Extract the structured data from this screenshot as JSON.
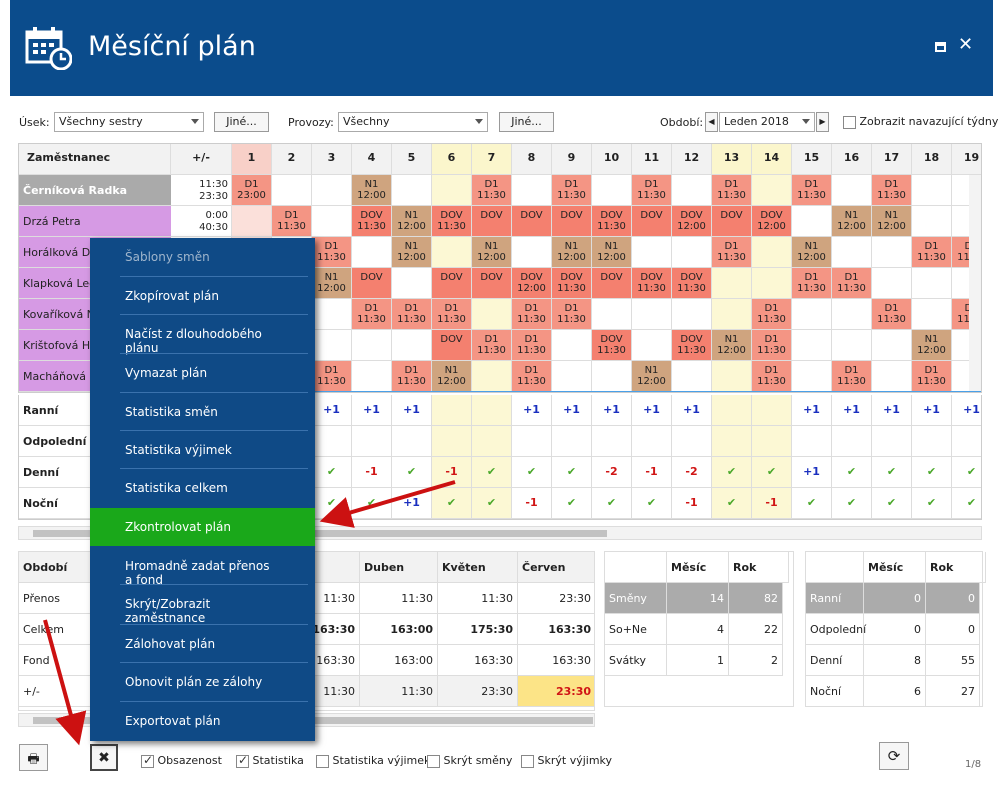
{
  "header": {
    "title": "Měsíční plán"
  },
  "toolbar": {
    "usek_label": "Úsek:",
    "usek_value": "Všechny sestry",
    "jine1": "Jiné...",
    "provozy_label": "Provozy:",
    "provozy_value": "Všechny",
    "jine2": "Jiné...",
    "obdobi_label": "Období:",
    "obdobi_value": "Leden 2018",
    "navazujici": "Zobrazit navazující týdny"
  },
  "grid": {
    "col_employee": "Zaměstnanec",
    "col_pm": "+/-",
    "days": [
      "1",
      "2",
      "3",
      "4",
      "5",
      "6",
      "7",
      "8",
      "9",
      "10",
      "11",
      "12",
      "13",
      "14",
      "15",
      "16",
      "17",
      "18",
      "19"
    ],
    "rows": [
      {
        "name": "Černíková Radka",
        "pm1": "11:30",
        "pm2": "23:30",
        "cells": [
          [
            "D1",
            "23:00"
          ],
          [
            "",
            ""
          ],
          [
            "",
            ""
          ],
          [
            "N1",
            "12:00"
          ],
          [
            "",
            ""
          ],
          [
            "",
            ""
          ],
          [
            "D1",
            "11:30"
          ],
          [
            "",
            ""
          ],
          [
            "D1",
            "11:30"
          ],
          [
            "",
            ""
          ],
          [
            "D1",
            "11:30"
          ],
          [
            "",
            ""
          ],
          [
            "D1",
            "11:30"
          ],
          [
            "",
            ""
          ],
          [
            "D1",
            "11:30"
          ],
          [
            "",
            ""
          ],
          [
            "D1",
            "11:30"
          ],
          [
            "",
            ""
          ],
          [
            "",
            ""
          ]
        ]
      },
      {
        "name": "Drzá Petra",
        "pm1": "0:00",
        "pm2": "40:30",
        "cells": [
          [
            "",
            ""
          ],
          [
            "D1",
            "11:30"
          ],
          [
            "",
            ""
          ],
          [
            "DOV",
            "11:30"
          ],
          [
            "N1",
            "12:00"
          ],
          [
            "DOV",
            "11:30"
          ],
          [
            "DOV",
            ""
          ],
          [
            "DOV",
            ""
          ],
          [
            "DOV",
            ""
          ],
          [
            "DOV",
            "11:30"
          ],
          [
            "DOV",
            ""
          ],
          [
            "DOV",
            "12:00"
          ],
          [
            "DOV",
            ""
          ],
          [
            "DOV",
            "12:00"
          ],
          [
            "",
            ""
          ],
          [
            "N1",
            "12:00"
          ],
          [
            "N1",
            "12:00"
          ],
          [
            "",
            ""
          ],
          [
            "",
            ""
          ]
        ]
      },
      {
        "name": "Horálková Dom",
        "pm1": "",
        "pm2": "",
        "cells": [
          [
            "",
            ""
          ],
          [
            "",
            ""
          ],
          [
            "D1",
            "11:30"
          ],
          [
            "",
            ""
          ],
          [
            "N1",
            "12:00"
          ],
          [
            "",
            ""
          ],
          [
            "N1",
            "12:00"
          ],
          [
            "",
            ""
          ],
          [
            "N1",
            "12:00"
          ],
          [
            "N1",
            "12:00"
          ],
          [
            "",
            ""
          ],
          [
            "",
            ""
          ],
          [
            "D1",
            "11:30"
          ],
          [
            "",
            ""
          ],
          [
            "N1",
            "12:00"
          ],
          [
            "",
            ""
          ],
          [
            "",
            ""
          ],
          [
            "D1",
            "11:30"
          ],
          [
            "D1",
            "11:30"
          ]
        ]
      },
      {
        "name": "Klapková Leon",
        "pm1": "",
        "pm2": "",
        "cells": [
          [
            "",
            ""
          ],
          [
            "",
            ""
          ],
          [
            "N1",
            "12:00"
          ],
          [
            "DOV",
            ""
          ],
          [
            "",
            ""
          ],
          [
            "DOV",
            ""
          ],
          [
            "DOV",
            ""
          ],
          [
            "DOV",
            "12:00"
          ],
          [
            "DOV",
            "11:30"
          ],
          [
            "DOV",
            ""
          ],
          [
            "DOV",
            "11:30"
          ],
          [
            "DOV",
            "11:30"
          ],
          [
            "",
            ""
          ],
          [
            "",
            ""
          ],
          [
            "D1",
            "11:30"
          ],
          [
            "D1",
            "11:30"
          ],
          [
            "",
            ""
          ],
          [
            "",
            ""
          ],
          [
            "",
            ""
          ]
        ]
      },
      {
        "name": "Kovaříková Nin",
        "pm1": "",
        "pm2": "",
        "cells": [
          [
            "",
            ""
          ],
          [
            "",
            ""
          ],
          [
            "",
            ""
          ],
          [
            "D1",
            "11:30"
          ],
          [
            "D1",
            "11:30"
          ],
          [
            "D1",
            "11:30"
          ],
          [
            "",
            ""
          ],
          [
            "D1",
            "11:30"
          ],
          [
            "D1",
            "11:30"
          ],
          [
            "",
            ""
          ],
          [
            "",
            ""
          ],
          [
            "",
            ""
          ],
          [
            "",
            ""
          ],
          [
            "D1",
            "11:30"
          ],
          [
            "",
            ""
          ],
          [
            "",
            ""
          ],
          [
            "D1",
            "11:30"
          ],
          [
            "",
            ""
          ],
          [
            "D1",
            "11:30"
          ]
        ]
      },
      {
        "name": "Krištofová Han",
        "pm1": "",
        "pm2": "",
        "cells": [
          [
            "",
            ""
          ],
          [
            "",
            ""
          ],
          [
            "",
            ""
          ],
          [
            "",
            ""
          ],
          [
            "",
            ""
          ],
          [
            "DOV",
            ""
          ],
          [
            "D1",
            "11:30"
          ],
          [
            "D1",
            "11:30"
          ],
          [
            "",
            ""
          ],
          [
            "DOV",
            "11:30"
          ],
          [
            "",
            ""
          ],
          [
            "DOV",
            "11:30"
          ],
          [
            "N1",
            "12:00"
          ],
          [
            "D1",
            "11:30"
          ],
          [
            "",
            ""
          ],
          [
            "",
            ""
          ],
          [
            "",
            ""
          ],
          [
            "N1",
            "12:00"
          ],
          [
            "",
            ""
          ]
        ]
      },
      {
        "name": "Macháňová Lu",
        "pm1": "",
        "pm2": "",
        "cells": [
          [
            "",
            ""
          ],
          [
            "",
            ""
          ],
          [
            "D1",
            "11:30"
          ],
          [
            "",
            ""
          ],
          [
            "D1",
            "11:30"
          ],
          [
            "N1",
            "12:00"
          ],
          [
            "",
            ""
          ],
          [
            "D1",
            "11:30"
          ],
          [
            "",
            ""
          ],
          [
            "",
            ""
          ],
          [
            "N1",
            "12:00"
          ],
          [
            "",
            ""
          ],
          [
            "",
            ""
          ],
          [
            "D1",
            "11:30"
          ],
          [
            "",
            ""
          ],
          [
            "D1",
            "11:30"
          ],
          [
            "",
            ""
          ],
          [
            "D1",
            "11:30"
          ],
          [
            "",
            ""
          ]
        ]
      }
    ]
  },
  "stats": {
    "rows": [
      {
        "label": "Ranní",
        "vals": [
          "",
          "",
          "+1",
          "+1",
          "+1",
          "",
          "",
          "+1",
          "+1",
          "+1",
          "+1",
          "+1",
          "",
          "",
          "+1",
          "+1",
          "+1",
          "+1",
          "+1"
        ]
      },
      {
        "label": "Odpolední",
        "vals": [
          "",
          "",
          "",
          "",
          "",
          "",
          "",
          "",
          "",
          "",
          "",
          "",
          "",
          "",
          "",
          "",
          "",
          "",
          ""
        ]
      },
      {
        "label": "Denní",
        "vals": [
          "",
          "",
          "✔",
          "-1",
          "✔",
          "-1",
          "✔",
          "✔",
          "✔",
          "-2",
          "-1",
          "-2",
          "✔",
          "✔",
          "+1",
          "✔",
          "✔",
          "✔",
          "✔"
        ]
      },
      {
        "label": "Noční",
        "vals": [
          "",
          "",
          "✔",
          "✔",
          "+1",
          "✔",
          "✔",
          "-1",
          "✔",
          "✔",
          "✔",
          "-1",
          "✔",
          "-1",
          "✔",
          "✔",
          "✔",
          "✔",
          "✔"
        ]
      }
    ]
  },
  "period_table": {
    "headers": [
      "Období",
      "",
      "",
      "Duben",
      "Květen",
      "Červen"
    ],
    "header_partial": "en",
    "rows": [
      {
        "label": "Přenos",
        "vals": [
          "11:30",
          "11:30",
          "11:30",
          "23:30"
        ]
      },
      {
        "label": "Celkem",
        "vals": [
          "163:30",
          "163:00",
          "175:30",
          "163:30"
        ]
      },
      {
        "label": "Fond",
        "vals": [
          "163:30",
          "163:00",
          "163:30",
          "163:30"
        ]
      },
      {
        "label": "+/-",
        "vals": [
          "11:30",
          "11:30",
          "23:30",
          "23:30"
        ]
      }
    ]
  },
  "summary1": {
    "headers": [
      "Měsíc",
      "Rok"
    ],
    "rows": [
      {
        "label": "Směny",
        "m": "14",
        "r": "82"
      },
      {
        "label": "So+Ne",
        "m": "4",
        "r": "22"
      },
      {
        "label": "Svátky",
        "m": "1",
        "r": "2"
      }
    ]
  },
  "summary2": {
    "headers": [
      "Měsíc",
      "Rok"
    ],
    "rows": [
      {
        "label": "Ranní",
        "m": "0",
        "r": "0"
      },
      {
        "label": "Odpolední",
        "m": "0",
        "r": "0"
      },
      {
        "label": "Denní",
        "m": "8",
        "r": "55"
      },
      {
        "label": "Noční",
        "m": "6",
        "r": "27"
      }
    ]
  },
  "menu": {
    "items": [
      "Šablony směn",
      "Zkopírovat plán",
      "Načíst z dlouhodobého plánu",
      "Vymazat plán",
      "Statistika směn",
      "Statistika výjimek",
      "Statistika celkem",
      "Zkontrolovat plán",
      "Hromadně zadat přenos a fond",
      "Skrýt/Zobrazit zaměstnance",
      "Zálohovat plán",
      "Obnovit plán ze zálohy",
      "Exportovat plán"
    ]
  },
  "bottom": {
    "obsazenost": "Obsazenost",
    "statistika": "Statistika",
    "statistika_vyjimek": "Statistika výjimek",
    "skryt_smeny": "Skrýt směny",
    "skryt_vyjimky": "Skrýt výjimky",
    "page": "1/8"
  },
  "colors": {
    "header_bg": "#0b4c8c",
    "menu_bg": "#0f4a86",
    "menu_active": "#1aa81a",
    "d1": "#f49584",
    "n1": "#cfa47f",
    "dov": "#f4806f"
  }
}
